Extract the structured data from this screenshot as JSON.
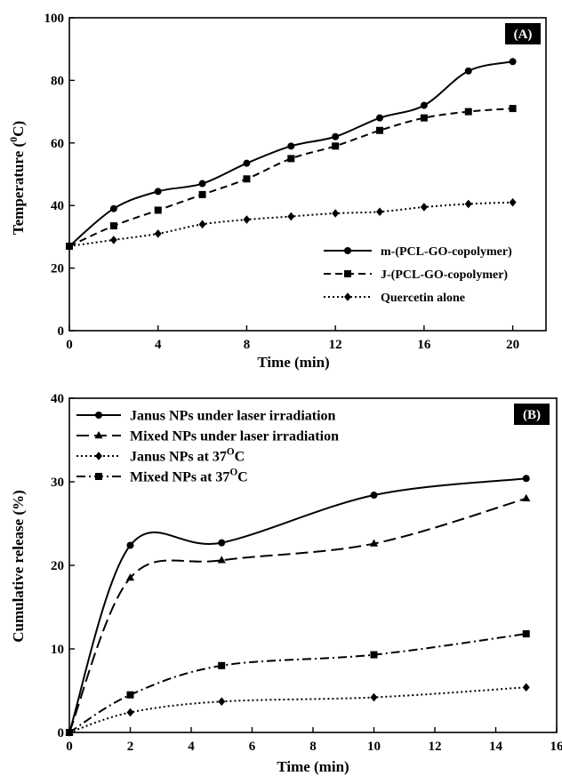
{
  "chart_data": [
    {
      "type": "line",
      "panel_label": "(A)",
      "xlabel": "Time (min)",
      "ylabel": "Temperature (",
      "ylabel_sup": "0",
      "ylabel_end": "C)",
      "xlim": [
        0,
        21.5
      ],
      "ylim": [
        0,
        100
      ],
      "xticks": [
        0,
        4,
        8,
        12,
        16,
        20
      ],
      "yticks": [
        0,
        20,
        40,
        60,
        80,
        100
      ],
      "legend_position": "bottom-right",
      "x": [
        0,
        2,
        4,
        6,
        8,
        10,
        12,
        14,
        16,
        18,
        20
      ],
      "series": [
        {
          "name": "m-(PCL-GO-copolymer)",
          "values": [
            27,
            39,
            44.5,
            47,
            53.5,
            59,
            62,
            68,
            72,
            83,
            86
          ],
          "marker": "circle",
          "dash": "solid"
        },
        {
          "name": "J-(PCL-GO-copolymer)",
          "values": [
            27,
            33.5,
            38.5,
            43.5,
            48.5,
            55,
            59,
            64,
            68,
            70,
            71
          ],
          "marker": "square",
          "dash": "dashed"
        },
        {
          "name": "Quercetin alone",
          "values": [
            27,
            29,
            31,
            34,
            35.5,
            36.5,
            37.5,
            38,
            39.5,
            40.5,
            41
          ],
          "marker": "diamond",
          "dash": "dotted"
        }
      ]
    },
    {
      "type": "line",
      "panel_label": "(B)",
      "xlabel": "Time (min)",
      "ylabel": "Cumulative release (%)",
      "xlim": [
        0,
        16
      ],
      "ylim": [
        0,
        40
      ],
      "xticks": [
        0,
        2,
        4,
        6,
        8,
        10,
        12,
        14,
        16
      ],
      "yticks": [
        0,
        10,
        20,
        30,
        40
      ],
      "legend_position": "top-left",
      "x": [
        0,
        2,
        5,
        10,
        15
      ],
      "series": [
        {
          "name": "Janus NPs under laser irradiation",
          "values": [
            0,
            22.4,
            22.7,
            28.4,
            30.4
          ],
          "marker": "circle",
          "dash": "solid"
        },
        {
          "name": "Mixed NPs under laser irradiation",
          "values": [
            0,
            18.5,
            20.6,
            22.6,
            28
          ],
          "marker": "triangle",
          "dash": "longdash"
        },
        {
          "name": "Janus NPs at 37",
          "name_sup": "O",
          "name_end": "C",
          "values": [
            0,
            2.4,
            3.7,
            4.2,
            5.4
          ],
          "marker": "diamond",
          "dash": "dotted"
        },
        {
          "name": "Mixed NPs at 37",
          "name_sup": "O",
          "name_end": "C",
          "values": [
            0,
            4.5,
            8,
            9.3,
            11.8
          ],
          "marker": "square",
          "dash": "dashdot"
        }
      ]
    }
  ]
}
